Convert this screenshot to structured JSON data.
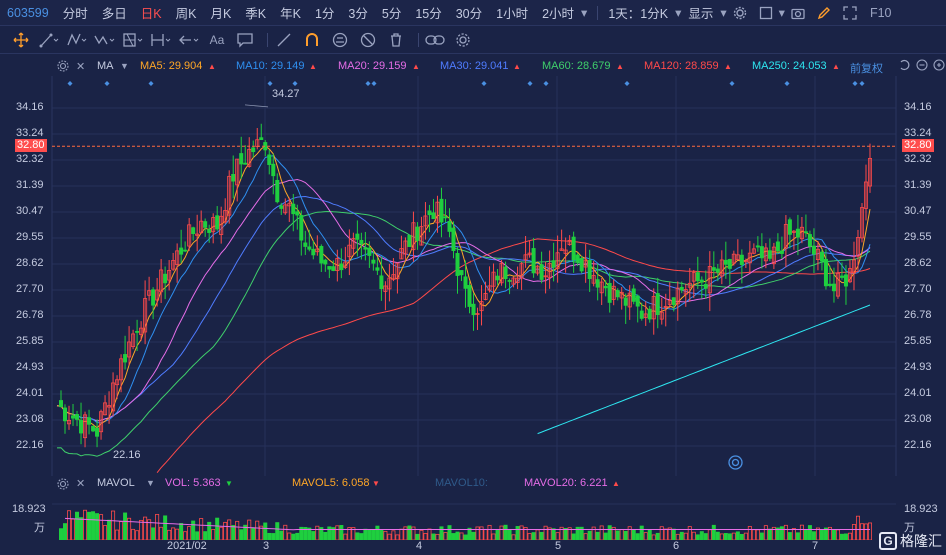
{
  "toolbar": {
    "code": "603599",
    "periods": [
      "分时",
      "多日",
      "日K",
      "周K",
      "月K",
      "季K",
      "年K",
      "1分",
      "3分",
      "5分",
      "15分",
      "30分",
      "1小时",
      "2小时"
    ],
    "active_period": "日K",
    "combo": "1天：1分K",
    "display": "显示",
    "f10": "F10"
  },
  "drawing_tools": [
    "cursor-icon",
    "line-icon",
    "polyline-icon",
    "wave-icon",
    "fib-icon",
    "range-icon",
    "arrow-icon",
    "text-icon",
    "note-icon",
    "ruler-icon",
    "magnet-icon",
    "lock-icon",
    "hide-icon",
    "trash-icon",
    "link-icon",
    "settings-icon"
  ],
  "text_tool": "Aa",
  "legend": {
    "ma_label": "MA",
    "ma5": "MA5: 29.904",
    "ma10": "MA10: 29.149",
    "ma20": "MA20: 29.159",
    "ma30": "MA30: 29.041",
    "ma60": "MA60: 28.679",
    "ma120": "MA120: 28.859",
    "ma250": "MA250: 24.053",
    "adjust": "前复权"
  },
  "colors": {
    "ma5": "#ffa726",
    "ma10": "#2f8ff0",
    "ma20": "#e56de7",
    "ma30": "#4f7cff",
    "ma60": "#3fcf6b",
    "ma120": "#ff4a4a",
    "ma250": "#2ee6f0",
    "up": "#ff4a4a",
    "down": "#1fcf3f",
    "grid": "#26305a",
    "bg": "#1a2346"
  },
  "axis": {
    "ticks": [
      "34.16",
      "33.24",
      "32.32",
      "31.39",
      "30.47",
      "29.55",
      "28.62",
      "27.70",
      "26.78",
      "25.85",
      "24.93",
      "24.01",
      "23.08",
      "22.16"
    ],
    "current_price": "32.80",
    "high_label": "34.27",
    "low_label": "22.16",
    "dates": [
      "2021/02",
      "3",
      "4",
      "5",
      "6",
      "7"
    ]
  },
  "volume": {
    "label": "MAVOL",
    "vol": "VOL: 5.363",
    "mavol5": "MAVOL5: 6.058",
    "mavol10": "MAVOL10:",
    "mavol20": "MAVOL20: 6.221",
    "axis_top": "18.923",
    "unit": "万"
  },
  "watermark": "格隆汇"
}
